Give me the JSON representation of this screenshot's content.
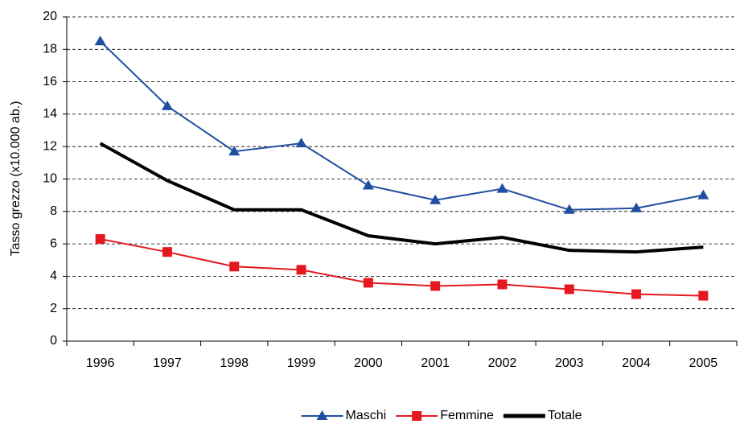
{
  "chart_data": {
    "type": "line",
    "categories": [
      "1996",
      "1997",
      "1998",
      "1999",
      "2000",
      "2001",
      "2002",
      "2003",
      "2004",
      "2005"
    ],
    "y_label": "Tasso grezzo (x10.000 ab.)",
    "series": [
      {
        "name": "Maschi",
        "color": "#1f4fa0",
        "marker": "triangle",
        "values": [
          18.5,
          14.5,
          11.7,
          12.2,
          9.6,
          8.7,
          9.4,
          8.1,
          8.2,
          9.0
        ]
      },
      {
        "name": "Femmine",
        "color": "#e3191f",
        "marker": "square",
        "values": [
          6.3,
          5.5,
          4.6,
          4.4,
          3.6,
          3.4,
          3.5,
          3.2,
          2.9,
          2.8
        ]
      },
      {
        "name": "Totale",
        "color": "#000000",
        "marker": "none",
        "values": [
          12.2,
          9.9,
          8.1,
          8.1,
          6.5,
          6.0,
          6.4,
          5.6,
          5.5,
          5.8
        ]
      }
    ],
    "ylim": [
      0,
      20
    ],
    "yticks": [
      0,
      2,
      4,
      6,
      8,
      10,
      12,
      14,
      16,
      18,
      20
    ],
    "grid": true,
    "legend": "bottom"
  }
}
